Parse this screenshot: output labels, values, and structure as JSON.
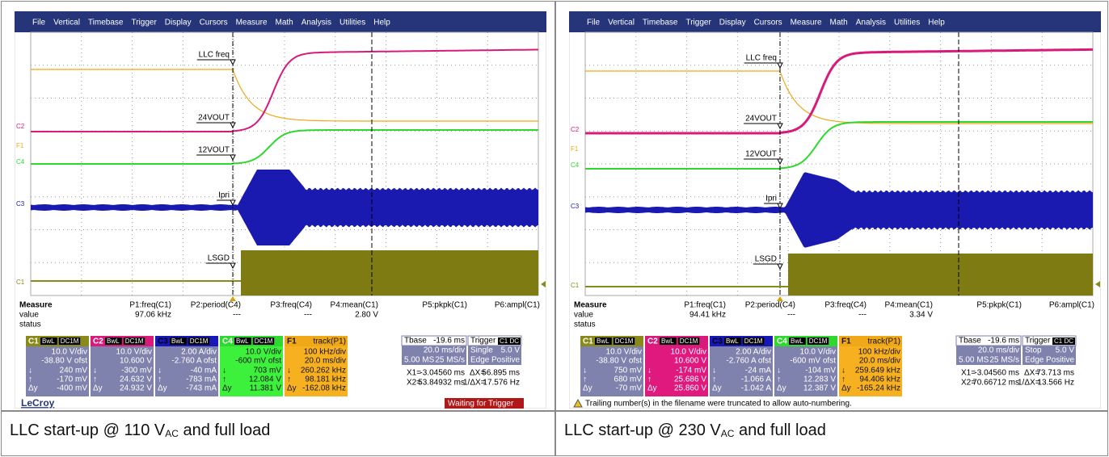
{
  "menu": [
    "File",
    "Vertical",
    "Timebase",
    "Trigger",
    "Display",
    "Cursors",
    "Measure",
    "Math",
    "Analysis",
    "Utilities",
    "Help"
  ],
  "cursor_symbols": [
    "↓",
    "↑",
    "Δy"
  ],
  "panels": [
    {
      "markers": [
        "LLC freq",
        "24VOUT",
        "12VOUT",
        "Ipri",
        "LSGD"
      ],
      "tags": [
        "C2",
        "F1",
        "C4",
        "C3",
        "C1"
      ],
      "measure": {
        "headers": [
          "Measure",
          "P1:freq(C1)",
          "P2:period(C4)",
          "P3:freq(C4)",
          "P4:mean(C1)",
          "P5:pkpk(C1)",
          "P6:ampl(C1)"
        ],
        "value_label": "value",
        "values": [
          "97.06 kHz",
          "---",
          "---",
          "2.80 V"
        ],
        "status_label": "status"
      },
      "channels": [
        {
          "name": "C1",
          "color": "#8a8a1a",
          "body": "#7f82ad",
          "badges": [
            "BwL",
            "DC1M"
          ],
          "lines": [
            "10.0 V/div",
            "-38.80 V ofst"
          ],
          "readings": [
            "240 mV",
            "-170 mV",
            "-400 mV"
          ]
        },
        {
          "name": "C2",
          "color": "#d81b7a",
          "body": "#7f82ad",
          "badges": [
            "BwL",
            "DC1M"
          ],
          "lines": [
            "10.0 V/div",
            "10.600 V"
          ],
          "readings": [
            "-300 mV",
            "24.632 V",
            "24.932 V"
          ]
        },
        {
          "name": "C3",
          "color": "#1818b8",
          "body": "#7f82ad",
          "badges": [
            "BwL",
            "DC1M"
          ],
          "lines": [
            "2.00 A/div",
            "-2.760 A ofst"
          ],
          "readings": [
            "-40 mA",
            "-783 mA",
            "-743 mA"
          ]
        },
        {
          "name": "C4",
          "color": "#2ed82e",
          "body": "#3cf03c",
          "badges": [
            "BwL",
            "DC1M"
          ],
          "lines": [
            "10.0 V/div",
            "-600 mV ofst"
          ],
          "readings": [
            "703 mV",
            "12.084 V",
            "11.381 V"
          ]
        },
        {
          "name": "F1",
          "color": "#f0a818",
          "body": "#f7b020",
          "title": "track(P1)",
          "lines": [
            "100 kHz/div",
            "20.0 ms/div"
          ],
          "readings": [
            "260.262 kHz",
            "98.181 kHz",
            "-162.08 kHz"
          ]
        }
      ],
      "timebase": {
        "label": "Tbase",
        "delay": "-19.6 ms",
        "scale": "20.0 ms/div",
        "samples": "5.00 MS",
        "rate": "25 MS/s"
      },
      "trigger": {
        "label": "Trigger",
        "badge": "C1 DC",
        "mode": "Single",
        "level": "5.0 V",
        "type": "Edge",
        "slope": "Positive"
      },
      "cursors": {
        "x1_label": "X1=",
        "x1": "-3.04560 ms",
        "dx_label": "ΔX=",
        "dx": "56.895 ms",
        "x2_label": "X2=",
        "x2": "53.84932 ms",
        "inv_label": "1/ΔX=",
        "inv": "17.576 Hz"
      },
      "footer": {
        "brand": "LeCroy",
        "status": "Waiting for Trigger"
      },
      "caption": {
        "prefix": "LLC start-up @ 110 V",
        "sub": "AC",
        "suffix": " and full load"
      }
    },
    {
      "markers": [
        "LLC freq",
        "24VOUT",
        "12VOUT",
        "Ipri",
        "LSGD"
      ],
      "tags": [
        "C2",
        "F1",
        "C4",
        "C3",
        "C1"
      ],
      "measure": {
        "headers": [
          "Measure",
          "P1:freq(C1)",
          "P2:period(C4)",
          "P3:freq(C4)",
          "P4:mean(C1)",
          "P5:pkpk(C1)",
          "P6:ampl(C1)"
        ],
        "value_label": "value",
        "values": [
          "94.41 kHz",
          "---",
          "---",
          "3.34 V"
        ],
        "status_label": "status"
      },
      "channels": [
        {
          "name": "C1",
          "color": "#8a8a1a",
          "body": "#7f82ad",
          "badges": [
            "BwL",
            "DC1M"
          ],
          "lines": [
            "10.0 V/div",
            "-38.80 V ofst"
          ],
          "readings": [
            "750 mV",
            "680 mV",
            "-70 mV"
          ]
        },
        {
          "name": "C2",
          "color": "#d81b7a",
          "body": "#e0197f",
          "badges": [
            "BwL",
            "DC1M"
          ],
          "lines": [
            "10.0 V/div",
            "10.600 V"
          ],
          "readings": [
            "-174 mV",
            "25.686 V",
            "25.860 V"
          ]
        },
        {
          "name": "C3",
          "color": "#1818b8",
          "body": "#7f82ad",
          "badges": [
            "BwL",
            "DC1M"
          ],
          "lines": [
            "2.00 A/div",
            "-2.760 A ofst"
          ],
          "readings": [
            "-24 mA",
            "-1.066 A",
            "-1.042 A"
          ]
        },
        {
          "name": "C4",
          "color": "#2ed82e",
          "body": "#7f82ad",
          "badges": [
            "BwL",
            "DC1M"
          ],
          "lines": [
            "10.0 V/div",
            "-600 mV ofst"
          ],
          "readings": [
            "-104 mV",
            "12.283 V",
            "12.387 V"
          ]
        },
        {
          "name": "F1",
          "color": "#f0a818",
          "body": "#f7b020",
          "title": "track(P1)",
          "lines": [
            "100 kHz/div",
            "20.0 ms/div"
          ],
          "readings": [
            "259.649 kHz",
            "94.406 kHz",
            "-165.24 kHz"
          ]
        }
      ],
      "timebase": {
        "label": "Tbase",
        "delay": "-19.6 ms",
        "scale": "20.0 ms/div",
        "samples": "5.00 MS",
        "rate": "25 MS/s"
      },
      "trigger": {
        "label": "Trigger",
        "badge": "C1 DC",
        "mode": "Stop",
        "level": "5.0 V",
        "type": "Edge",
        "slope": "Positive"
      },
      "cursors": {
        "x1_label": "X1=",
        "x1": "-3.04560 ms",
        "dx_label": "ΔX=",
        "dx": "73.713 ms",
        "x2_label": "X2=",
        "x2": "70.66712 ms",
        "inv_label": "1/ΔX=",
        "inv": "13.566 Hz"
      },
      "footer": {
        "note": "Trailing number(s) in the filename were truncated to allow auto-numbering."
      },
      "caption": {
        "prefix": "LLC start-up @ 230 V",
        "sub": "AC",
        "suffix": " and full load"
      }
    }
  ]
}
